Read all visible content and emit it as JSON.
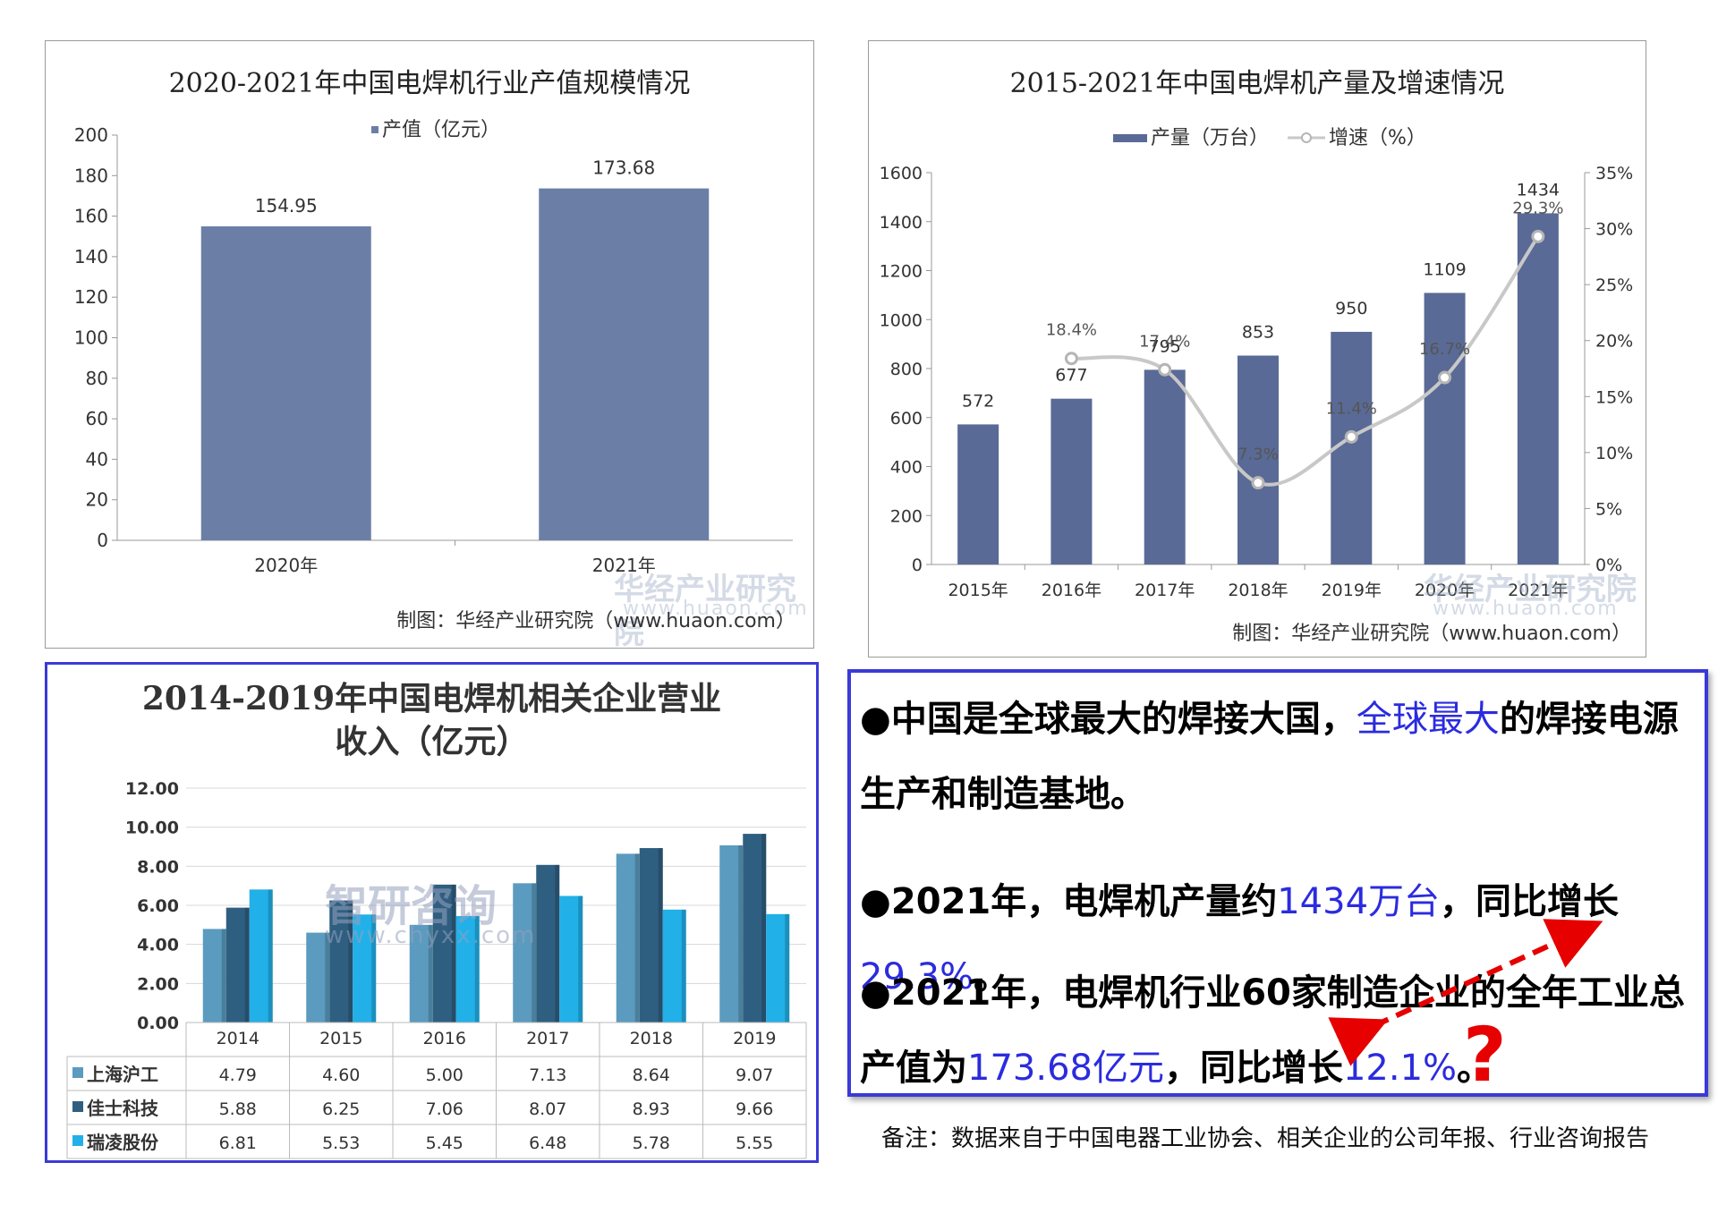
{
  "chart_data": [
    {
      "type": "bar",
      "title": "2020-2021年中国电焊机行业产值规模情况",
      "categories": [
        "2020年",
        "2021年"
      ],
      "series": [
        {
          "name": "产值（亿元）",
          "values": [
            154.95,
            173.68
          ]
        }
      ],
      "data_labels": [
        "154.95",
        "173.68"
      ],
      "ylim": [
        0,
        200
      ],
      "yticks": [
        "0",
        "20",
        "40",
        "60",
        "80",
        "100",
        "120",
        "140",
        "160",
        "180",
        "200"
      ],
      "legend": "top-center",
      "colors": {
        "bar": "#6b7fa6"
      }
    },
    {
      "type": "bar",
      "title": "2015-2021年中国电焊机产量及增速情况",
      "categories": [
        "2015年",
        "2016年",
        "2017年",
        "2018年",
        "2019年",
        "2020年",
        "2021年"
      ],
      "series": [
        {
          "name": "产量（万台）",
          "values": [
            572,
            677,
            795,
            853,
            950,
            1109,
            1434
          ],
          "type": "bar"
        },
        {
          "name": "增速（%）",
          "values": [
            null,
            18.4,
            17.4,
            7.3,
            11.4,
            16.7,
            29.3
          ],
          "type": "line",
          "axis": "right"
        }
      ],
      "bar_labels": [
        "572",
        "677",
        "795",
        "853",
        "950",
        "1109",
        "1434"
      ],
      "line_labels": [
        "",
        "18.4%",
        "17.4%",
        "7.3%",
        "11.4%",
        "16.7%",
        "29.3%"
      ],
      "ylim": [
        0,
        1600
      ],
      "yticks": [
        "0",
        "200",
        "400",
        "600",
        "800",
        "1000",
        "1200",
        "1400",
        "1600"
      ],
      "y2lim": [
        0,
        35
      ],
      "y2ticks": [
        "0%",
        "5%",
        "10%",
        "15%",
        "20%",
        "25%",
        "30%",
        "35%"
      ],
      "legend": "top-center",
      "colors": {
        "bar": "#5a6a96",
        "line": "#c8c8c8"
      }
    },
    {
      "type": "bar",
      "title": "2014-2019年中国电焊机相关企业营业收入（亿元）",
      "categories": [
        "2014",
        "2015",
        "2016",
        "2017",
        "2018",
        "2019"
      ],
      "series": [
        {
          "name": "上海沪工",
          "values": [
            4.79,
            4.6,
            5.0,
            7.13,
            8.64,
            9.07
          ]
        },
        {
          "name": "佳士科技",
          "values": [
            5.88,
            6.25,
            7.06,
            8.07,
            8.93,
            9.66
          ]
        },
        {
          "name": "瑞凌股份",
          "values": [
            6.81,
            5.53,
            5.45,
            6.48,
            5.78,
            5.55
          ]
        }
      ],
      "ylim": [
        0,
        12
      ],
      "yticks": [
        "0.00",
        "2.00",
        "4.00",
        "6.00",
        "8.00",
        "10.00",
        "12.00"
      ],
      "legend": "data-table",
      "colors": {
        "s1": "#5b9bbf",
        "s2": "#2f5f80",
        "s3": "#22b0e8"
      }
    }
  ],
  "chart1": {
    "title": "2020-2021年中国电焊机行业产值规模情况",
    "legend": "产值（亿元）",
    "credit": "制图：华经产业研究院（www.huaon.com）",
    "watermark": "华经产业研究院",
    "watermark_sub": "www.huaon.com"
  },
  "chart2": {
    "title": "2015-2021年中国电焊机产量及增速情况",
    "legend_bar": "产量（万台）",
    "legend_line": "增速（%）",
    "credit": "制图：华经产业研究院（www.huaon.com）",
    "watermark": "华经产业研究院",
    "watermark_sub": "www.huaon.com"
  },
  "chart3": {
    "title": "2014-2019年中国电焊机相关企业营业收入（亿元）",
    "watermark": "智研咨询",
    "watermark_sub": "www.chyxx.com",
    "table": [
      {
        "name": "上海沪工",
        "values": [
          "4.79",
          "4.60",
          "5.00",
          "7.13",
          "8.64",
          "9.07"
        ]
      },
      {
        "name": "佳士科技",
        "values": [
          "5.88",
          "6.25",
          "7.06",
          "8.07",
          "8.93",
          "9.66"
        ]
      },
      {
        "name": "瑞凌股份",
        "values": [
          "6.81",
          "5.53",
          "5.45",
          "6.48",
          "5.78",
          "5.55"
        ]
      }
    ]
  },
  "text_panel": {
    "b1_a": "●中国是全球最大的焊接大国，",
    "b1_hl": "全球最大",
    "b1_b": "的焊接电源生产和制造基地。",
    "b2_a": "●2021年，电焊机产量约",
    "b2_hl1": "1434万台",
    "b2_b": "，同比增长",
    "b2_hl2": "29.3%",
    "b2_c": "。",
    "b3_a": "●2021年，电焊机行业60家制造企业的全年工业总产值为",
    "b3_hl1": "173.68亿元",
    "b3_b": "，同比增长",
    "b3_hl2": "12.1%",
    "b3_c": "。",
    "question": "?"
  },
  "footnote": "备注：数据来自于中国电器工业协会、相关企业的公司年报、行业咨询报告"
}
